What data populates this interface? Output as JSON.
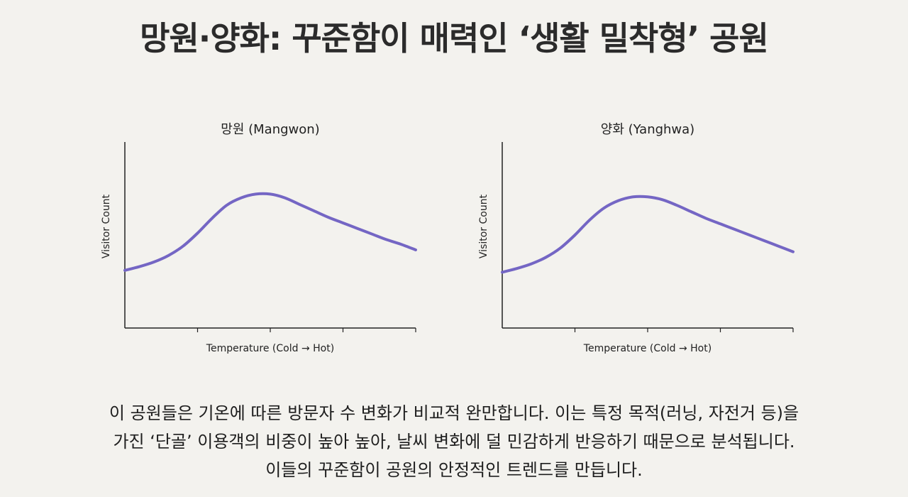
{
  "page": {
    "title": "망원·양화: 꾸준함이 매력인 ‘생활 밀착형’ 공원",
    "caption_lines": [
      "이 공원들은 기온에 따른 방문자 수 변화가 비교적 완만합니다. 이는 특정 목적(러닝, 자전거 등)을",
      "가진 ‘단골’ 이용객의 비중이 높아 높아, 날씨 변화에 덜 민감하게 반응하기 때문으로 분석됩니다.",
      "이들의 꾸준함이 공원의 안정적인 트렌드를 만듭니다."
    ]
  },
  "colors": {
    "line": "#7466c4",
    "axis": "#222222",
    "background": "#f3f2ee"
  },
  "chart_data": [
    {
      "type": "line",
      "title": "망원 (Mangwon)",
      "xlabel": "Temperature (Cold → Hot)",
      "ylabel": "Visitor Count",
      "x": [
        0,
        0.05,
        0.1,
        0.15,
        0.2,
        0.25,
        0.3,
        0.35,
        0.4,
        0.45,
        0.5,
        0.55,
        0.6,
        0.65,
        0.7,
        0.75,
        0.8,
        0.85,
        0.9,
        0.95,
        1.0
      ],
      "series": [
        {
          "values": [
            0.31,
            0.33,
            0.355,
            0.39,
            0.44,
            0.51,
            0.59,
            0.66,
            0.7,
            0.72,
            0.72,
            0.7,
            0.665,
            0.63,
            0.595,
            0.565,
            0.535,
            0.505,
            0.475,
            0.45,
            0.42
          ]
        }
      ],
      "xlim": [
        0,
        1
      ],
      "ylim": [
        0,
        1
      ],
      "x_ticks": 3,
      "grid": false,
      "legend": "none"
    },
    {
      "type": "line",
      "title": "양화 (Yanghwa)",
      "xlabel": "Temperature (Cold → Hot)",
      "ylabel": "Visitor Count",
      "x": [
        0,
        0.05,
        0.1,
        0.15,
        0.2,
        0.25,
        0.3,
        0.35,
        0.4,
        0.45,
        0.5,
        0.55,
        0.6,
        0.65,
        0.7,
        0.75,
        0.8,
        0.85,
        0.9,
        0.95,
        1.0
      ],
      "series": [
        {
          "values": [
            0.3,
            0.32,
            0.345,
            0.38,
            0.43,
            0.5,
            0.58,
            0.645,
            0.685,
            0.705,
            0.705,
            0.69,
            0.66,
            0.625,
            0.59,
            0.56,
            0.53,
            0.5,
            0.47,
            0.44,
            0.41
          ]
        }
      ],
      "xlim": [
        0,
        1
      ],
      "ylim": [
        0,
        1
      ],
      "x_ticks": 3,
      "grid": false,
      "legend": "none"
    }
  ]
}
